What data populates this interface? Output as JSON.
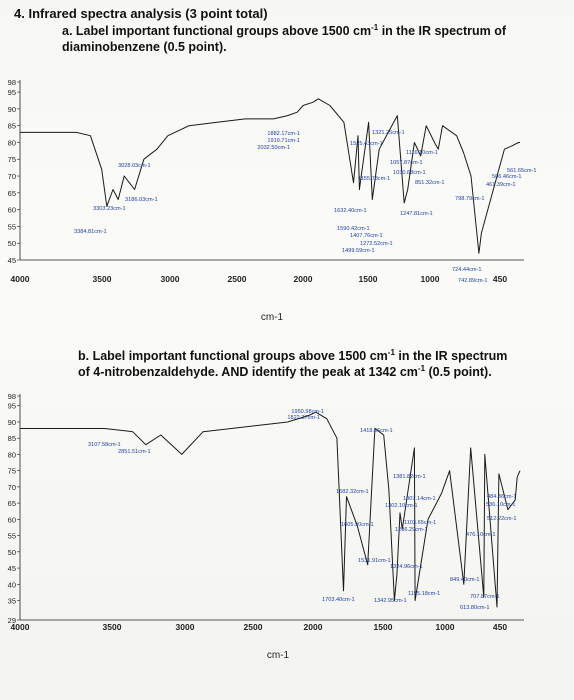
{
  "question": {
    "title": "4.  Infrared spectra analysis (3 point total)",
    "part_a": {
      "prefix": "a.  Label important functional groups above 1500 cm",
      "exp": "-1",
      "suffix": " in the IR spectrum of diaminobenzene (0.5 point)."
    },
    "part_b": {
      "prefix": "b.  Label important functional groups above 1500 cm",
      "exp": "-1",
      "middle": " in the IR spectrum of 4-nitrobenzaldehyde. AND identify the peak at 1342 cm",
      "exp2": "-1",
      "suffix": " (0.5 point)."
    }
  },
  "chart_data": [
    {
      "type": "line",
      "title": "",
      "xlabel": "cm-1",
      "ylabel": "",
      "xlim": [
        4000,
        450
      ],
      "ylim": [
        45,
        98
      ],
      "x_ticks": [
        "4000",
        "3500",
        "3000",
        "2500",
        "2000",
        "1500",
        "1000",
        "450"
      ],
      "y_ticks": [
        "98",
        "95",
        "90",
        "85",
        "80",
        "75",
        "70",
        "65",
        "60",
        "55",
        "50",
        "45"
      ],
      "grid": false,
      "series": [
        {
          "x": [
            4000,
            3800,
            3600,
            3500,
            3420,
            3384,
            3340,
            3303,
            3260,
            3186,
            3120,
            3028,
            2950,
            2800,
            2600,
            2400,
            2200,
            2100,
            2032,
            1990,
            1919,
            1882,
            1800,
            1700,
            1632,
            1600,
            1590,
            1525,
            1499,
            1450,
            1321,
            1272,
            1247,
            1200,
            1155,
            1116,
            1057,
            1030,
            1000,
            900,
            851,
            798,
            742,
            724,
            600,
            561,
            506,
            461,
            450
          ],
          "y": [
            83,
            83,
            83,
            82,
            72,
            61,
            66,
            63,
            70,
            66,
            75,
            78,
            82,
            85,
            86,
            87,
            87,
            88,
            89,
            91,
            92,
            93,
            91,
            86,
            68,
            82,
            66,
            86,
            63,
            78,
            88,
            62,
            66,
            80,
            76,
            85,
            80,
            78,
            85,
            82,
            77,
            70,
            47,
            53,
            72,
            78,
            79,
            80,
            80
          ]
        }
      ],
      "peak_labels": [
        "1882.17cm-1",
        "1919.71cm-1",
        "2032.50cm-1",
        "1321.25cm-1",
        "1525.43cm-1",
        "1116.10cm-1",
        "1057.87cm-1",
        "3028.03cm-1",
        "1030.68cm-1",
        "1155.78cm-1",
        "851.32cm-1",
        "561.65cm-1",
        "506.46cm-1",
        "461.39cm-1",
        "3186.03cm-1",
        "3303.23cm-1",
        "798.79cm-1",
        "1632.40cm-1",
        "1247.81cm-1",
        "3384.81cm-1",
        "1590.42cm-1",
        "1407.76cm-1",
        "1272.52cm-1",
        "1499.59cm-1",
        "724.44cm-1",
        "742.89cm-1"
      ]
    },
    {
      "type": "line",
      "title": "",
      "xlabel": "cm-1",
      "ylabel": "",
      "xlim": [
        4000,
        450
      ],
      "ylim": [
        29,
        98
      ],
      "x_ticks": [
        "4000",
        "3500",
        "3000",
        "2500",
        "2000",
        "1500",
        "1000",
        "450"
      ],
      "y_ticks": [
        "98",
        "95",
        "90",
        "85",
        "80",
        "75",
        "70",
        "65",
        "60",
        "55",
        "50",
        "45",
        "40",
        "35",
        "29"
      ],
      "grid": false,
      "series": [
        {
          "x": [
            4000,
            3800,
            3600,
            3400,
            3200,
            3107,
            3000,
            2851,
            2700,
            2500,
            2300,
            2100,
            1950,
            1900,
            1822,
            1750,
            1703,
            1682,
            1605,
            1531,
            1480,
            1418,
            1381,
            1342,
            1324,
            1302,
            1286,
            1200,
            1195,
            1103,
            1007,
            950,
            849,
            800,
            707,
            700,
            613,
            600,
            536,
            484,
            470,
            450
          ],
          "y": [
            88,
            88,
            88,
            88,
            87,
            83,
            86,
            80,
            87,
            88,
            89,
            90,
            92,
            93,
            91,
            85,
            38,
            67,
            58,
            46,
            88,
            86,
            69,
            35,
            43,
            62,
            57,
            82,
            35,
            60,
            68,
            75,
            40,
            82,
            36,
            80,
            33,
            74,
            63,
            66,
            73,
            75
          ]
        }
      ],
      "peak_labels": [
        "1950.98cm-1",
        "1822.37cm-1",
        "1418.96cm-1",
        "3107.58cm-1",
        "2851.51cm-1",
        "1381.82cm-1",
        "1682.32cm-1",
        "1007.14cm-1",
        "484.36cm-1",
        "536.10cm-1",
        "1302.10cm-1",
        "1605.90cm-1",
        "1103.65cm-1",
        "512.22cm-1",
        "1286.29cm-1",
        "476.10cm-1",
        "1531.91cm-1",
        "1324.96cm-1",
        "849.40cm-1",
        "1195.18cm-1",
        "707.87cm-1",
        "1703.40cm-1",
        "1342.95cm-1",
        "613.80cm-1"
      ]
    }
  ]
}
